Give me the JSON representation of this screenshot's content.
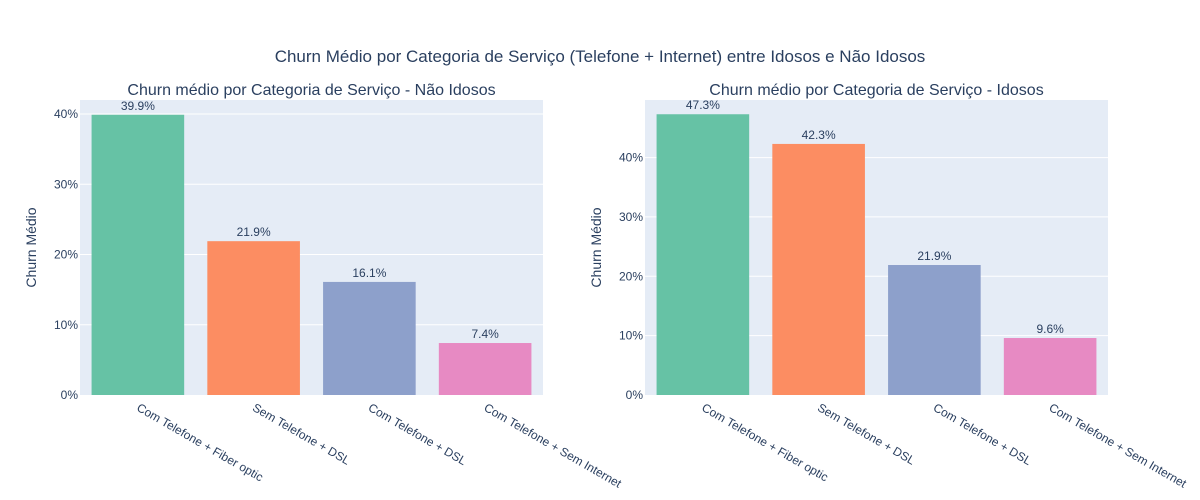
{
  "title": "Churn Médio por Categoria de Serviço (Telefone + Internet) entre Idosos e Não Idosos",
  "chart_data": [
    {
      "type": "bar",
      "title": "Churn médio por Categoria de Serviço - Não Idosos",
      "xlabel": "",
      "ylabel": "Churn Médio",
      "categories": [
        "Com Telefone + Fiber optic",
        "Sem Telefone + DSL",
        "Com Telefone + DSL",
        "Com Telefone + Sem Internet"
      ],
      "values": [
        0.399,
        0.219,
        0.161,
        0.074
      ],
      "data_labels": [
        "39.9%",
        "21.9%",
        "16.1%",
        "7.4%"
      ],
      "colors": [
        "#66c2a5",
        "#fc8d62",
        "#8da0cb",
        "#e78ac3"
      ],
      "ylim": [
        0,
        0.42
      ],
      "yticks": [
        0,
        0.1,
        0.2,
        0.3,
        0.4
      ],
      "ytick_labels": [
        "0%",
        "10%",
        "20%",
        "30%",
        "40%"
      ],
      "grid": true
    },
    {
      "type": "bar",
      "title": "Churn médio por Categoria de Serviço - Idosos",
      "xlabel": "",
      "ylabel": "Churn Médio",
      "categories": [
        "Com Telefone + Fiber optic",
        "Sem Telefone + DSL",
        "Com Telefone + DSL",
        "Com Telefone + Sem Internet"
      ],
      "values": [
        0.473,
        0.423,
        0.219,
        0.096
      ],
      "data_labels": [
        "47.3%",
        "42.3%",
        "21.9%",
        "9.6%"
      ],
      "colors": [
        "#66c2a5",
        "#fc8d62",
        "#8da0cb",
        "#e78ac3"
      ],
      "ylim": [
        0,
        0.497
      ],
      "yticks": [
        0,
        0.1,
        0.2,
        0.3,
        0.4
      ],
      "ytick_labels": [
        "0%",
        "10%",
        "20%",
        "30%",
        "40%"
      ],
      "grid": true
    }
  ],
  "colors": {
    "plot_bg": "#e5ecf6",
    "grid": "#ffffff",
    "text": "#2a3f5f"
  }
}
